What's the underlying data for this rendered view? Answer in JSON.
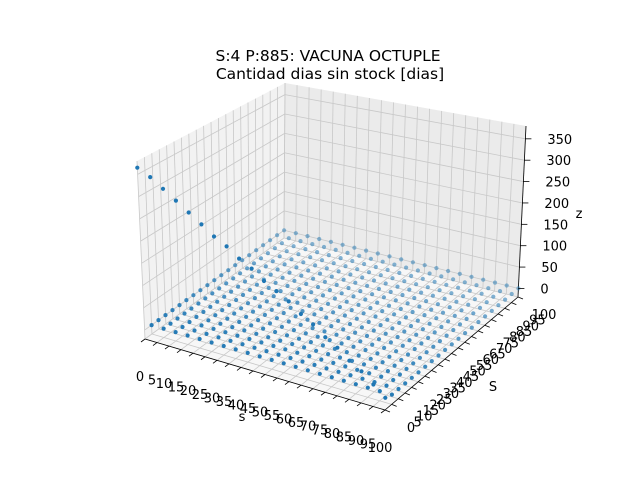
{
  "chart_data": {
    "type": "scatter3d",
    "title_line1": "S:4 P:885: VACUNA OCTUPLE",
    "title_line2": "Cantidad dias sin stock [dias]",
    "xlabel": "s",
    "ylabel": "S",
    "zlabel": "z",
    "x_ticks": [
      "0",
      "5",
      "10",
      "15",
      "20",
      "25",
      "30",
      "35",
      "40",
      "45",
      "50",
      "55",
      "60",
      "65",
      "70",
      "75",
      "80",
      "85",
      "90",
      "95",
      "100"
    ],
    "y_ticks": [
      "0",
      "5",
      "10",
      "15",
      "20",
      "25",
      "30",
      "35",
      "40",
      "45",
      "50",
      "55",
      "60",
      "65",
      "70",
      "75",
      "80",
      "85",
      "90",
      "95",
      "100"
    ],
    "z_ticks": [
      "0",
      "50",
      "100",
      "150",
      "200",
      "250",
      "300",
      "350"
    ],
    "xlim": [
      0,
      100
    ],
    "ylim": [
      0,
      100
    ],
    "zlim": [
      -20,
      380
    ],
    "s_values": [
      0,
      5,
      10,
      15,
      20,
      25,
      30,
      35,
      40,
      45,
      50,
      55,
      60,
      65,
      70,
      75,
      80,
      85,
      90,
      95,
      100
    ],
    "S_values": [
      0,
      5,
      10,
      15,
      20,
      25,
      30,
      35,
      40,
      45,
      50,
      55,
      60,
      65,
      70,
      75,
      80,
      85,
      90,
      95,
      100
    ],
    "z_rule": "z = 0 for S greater than 0; along S = 0, z falls from about 365 at s = 0 to about 0 at s = 100",
    "z_along_S0": [
      365,
      350,
      330,
      310,
      290,
      270,
      250,
      235,
      215,
      200,
      180,
      165,
      150,
      130,
      115,
      95,
      80,
      60,
      45,
      25,
      5
    ],
    "marker_color": "#1f77b4",
    "grid": true
  }
}
